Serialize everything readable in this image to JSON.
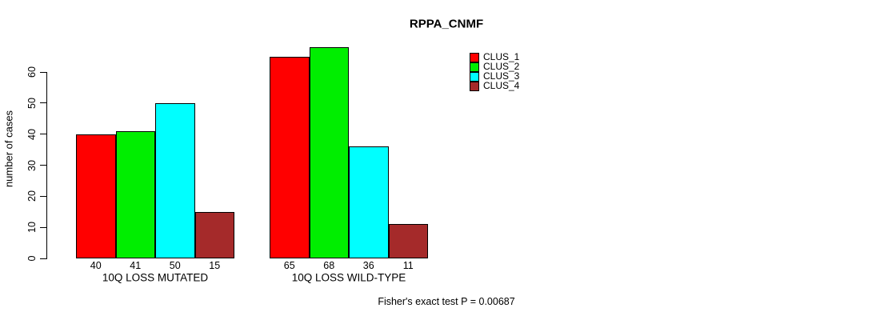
{
  "chart_data": {
    "type": "bar",
    "title": "RPPA_CNMF",
    "ylabel": "number of cases",
    "xlabel": "",
    "yticks": [
      0,
      10,
      20,
      30,
      40,
      50,
      60
    ],
    "ylim": [
      0,
      68
    ],
    "grid": false,
    "legend_position": "top-right-inside",
    "bar_value_labels_shown": true,
    "categories": [
      "10Q LOSS MUTATED",
      "10Q LOSS WILD-TYPE"
    ],
    "series": [
      {
        "name": "CLUS_1",
        "color": "#ff0000",
        "values": [
          40,
          65
        ]
      },
      {
        "name": "CLUS_2",
        "color": "#00ee00",
        "values": [
          41,
          68
        ]
      },
      {
        "name": "CLUS_3",
        "color": "#00ffff",
        "values": [
          50,
          36
        ]
      },
      {
        "name": "CLUS_4",
        "color": "#a52a2a",
        "values": [
          15,
          11
        ]
      }
    ]
  },
  "footer": {
    "note": "Fisher's exact test P = 0.00687"
  }
}
